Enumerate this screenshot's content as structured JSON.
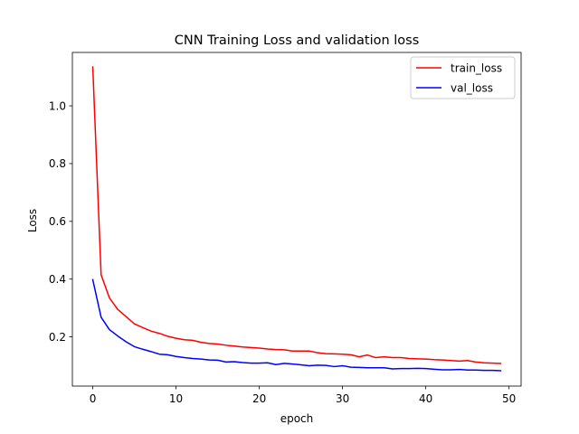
{
  "chart_data": {
    "type": "line",
    "title": "CNN Training Loss and validation loss",
    "xlabel": "epoch",
    "ylabel": "Loss",
    "xlim": [
      -2.45,
      51.45
    ],
    "ylim": [
      0.0295,
      1.185
    ],
    "xticks": [
      0,
      10,
      20,
      30,
      40,
      50
    ],
    "yticks": [
      0.2,
      0.4,
      0.6,
      0.8,
      1.0
    ],
    "xtick_labels": [
      "0",
      "10",
      "20",
      "30",
      "40",
      "50"
    ],
    "ytick_labels": [
      "0.2",
      "0.4",
      "0.6",
      "0.8",
      "1.0"
    ],
    "grid": false,
    "legend_position": "top-right",
    "x": [
      0,
      1,
      2,
      3,
      4,
      5,
      6,
      7,
      8,
      9,
      10,
      11,
      12,
      13,
      14,
      15,
      16,
      17,
      18,
      19,
      20,
      21,
      22,
      23,
      24,
      25,
      26,
      27,
      28,
      29,
      30,
      31,
      32,
      33,
      34,
      35,
      36,
      37,
      38,
      39,
      40,
      41,
      42,
      43,
      44,
      45,
      46,
      47,
      48,
      49
    ],
    "series": [
      {
        "name": "train_loss",
        "color": "#ff0000",
        "values": [
          1.135,
          0.415,
          0.335,
          0.295,
          0.27,
          0.245,
          0.232,
          0.22,
          0.212,
          0.202,
          0.195,
          0.19,
          0.188,
          0.181,
          0.177,
          0.175,
          0.171,
          0.168,
          0.165,
          0.163,
          0.161,
          0.158,
          0.156,
          0.155,
          0.151,
          0.151,
          0.151,
          0.145,
          0.142,
          0.141,
          0.14,
          0.138,
          0.131,
          0.137,
          0.128,
          0.131,
          0.128,
          0.128,
          0.125,
          0.124,
          0.123,
          0.121,
          0.12,
          0.118,
          0.116,
          0.118,
          0.113,
          0.11,
          0.109,
          0.108
        ]
      },
      {
        "name": "val_loss",
        "color": "#0000ff",
        "values": [
          0.398,
          0.268,
          0.225,
          0.203,
          0.183,
          0.166,
          0.157,
          0.149,
          0.14,
          0.138,
          0.132,
          0.128,
          0.125,
          0.123,
          0.12,
          0.119,
          0.113,
          0.114,
          0.111,
          0.109,
          0.109,
          0.11,
          0.104,
          0.108,
          0.106,
          0.103,
          0.1,
          0.102,
          0.101,
          0.097,
          0.1,
          0.095,
          0.094,
          0.093,
          0.093,
          0.093,
          0.089,
          0.09,
          0.09,
          0.091,
          0.09,
          0.088,
          0.086,
          0.086,
          0.087,
          0.085,
          0.085,
          0.084,
          0.084,
          0.083
        ]
      }
    ]
  }
}
